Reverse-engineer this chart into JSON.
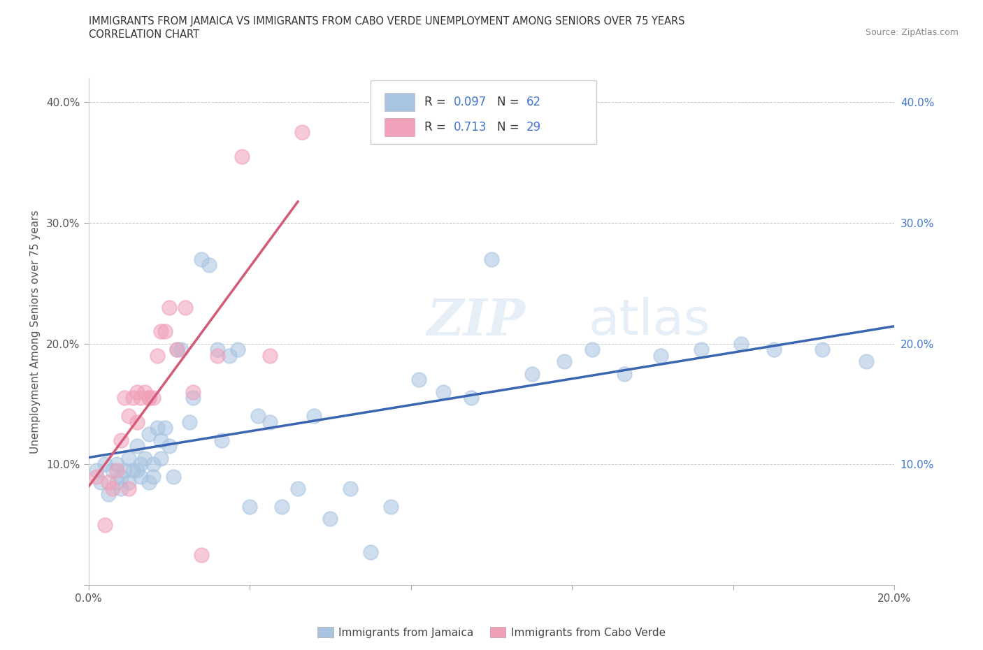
{
  "title_line1": "IMMIGRANTS FROM JAMAICA VS IMMIGRANTS FROM CABO VERDE UNEMPLOYMENT AMONG SENIORS OVER 75 YEARS",
  "title_line2": "CORRELATION CHART",
  "source": "Source: ZipAtlas.com",
  "ylabel_label": "Unemployment Among Seniors over 75 years",
  "xlim": [
    0.0,
    0.2
  ],
  "ylim": [
    0.0,
    0.42
  ],
  "xtick_positions": [
    0.0,
    0.04,
    0.08,
    0.12,
    0.16,
    0.2
  ],
  "ytick_positions": [
    0.0,
    0.1,
    0.2,
    0.3,
    0.4
  ],
  "jamaica_color": "#a8c4e0",
  "cabo_verde_color": "#f0a0b8",
  "jamaica_line_color": "#3a65b0",
  "cabo_verde_line_color": "#d45a78",
  "legend_R_jamaica": "0.097",
  "legend_N_jamaica": "62",
  "legend_R_cabo": "0.713",
  "legend_N_cabo": "29",
  "watermark_zip": "ZIP",
  "watermark_atlas": "atlas",
  "jamaica_scatter_x": [
    0.002,
    0.003,
    0.004,
    0.005,
    0.006,
    0.007,
    0.007,
    0.008,
    0.008,
    0.009,
    0.01,
    0.01,
    0.011,
    0.012,
    0.012,
    0.013,
    0.013,
    0.014,
    0.015,
    0.015,
    0.016,
    0.016,
    0.017,
    0.018,
    0.018,
    0.019,
    0.02,
    0.021,
    0.022,
    0.023,
    0.025,
    0.026,
    0.028,
    0.03,
    0.032,
    0.033,
    0.035,
    0.037,
    0.04,
    0.042,
    0.045,
    0.048,
    0.052,
    0.056,
    0.06,
    0.065,
    0.07,
    0.075,
    0.082,
    0.088,
    0.095,
    0.1,
    0.11,
    0.118,
    0.125,
    0.133,
    0.142,
    0.152,
    0.162,
    0.17,
    0.182,
    0.193
  ],
  "jamaica_scatter_y": [
    0.095,
    0.085,
    0.1,
    0.075,
    0.095,
    0.085,
    0.1,
    0.09,
    0.08,
    0.095,
    0.105,
    0.085,
    0.095,
    0.115,
    0.095,
    0.1,
    0.09,
    0.105,
    0.085,
    0.125,
    0.1,
    0.09,
    0.13,
    0.12,
    0.105,
    0.13,
    0.115,
    0.09,
    0.195,
    0.195,
    0.135,
    0.155,
    0.27,
    0.265,
    0.195,
    0.12,
    0.19,
    0.195,
    0.065,
    0.14,
    0.135,
    0.065,
    0.08,
    0.14,
    0.055,
    0.08,
    0.027,
    0.065,
    0.17,
    0.16,
    0.155,
    0.27,
    0.175,
    0.185,
    0.195,
    0.175,
    0.19,
    0.195,
    0.2,
    0.195,
    0.195,
    0.185
  ],
  "cabo_scatter_x": [
    0.002,
    0.004,
    0.005,
    0.006,
    0.007,
    0.008,
    0.009,
    0.01,
    0.01,
    0.011,
    0.012,
    0.012,
    0.013,
    0.014,
    0.015,
    0.015,
    0.016,
    0.017,
    0.018,
    0.019,
    0.02,
    0.022,
    0.024,
    0.026,
    0.028,
    0.032,
    0.038,
    0.045,
    0.053
  ],
  "cabo_scatter_y": [
    0.09,
    0.05,
    0.085,
    0.08,
    0.095,
    0.12,
    0.155,
    0.14,
    0.08,
    0.155,
    0.16,
    0.135,
    0.155,
    0.16,
    0.155,
    0.155,
    0.155,
    0.19,
    0.21,
    0.21,
    0.23,
    0.195,
    0.23,
    0.16,
    0.025,
    0.19,
    0.355,
    0.19,
    0.375
  ],
  "cabo_line_x_start": 0.0,
  "cabo_line_x_end": 0.052,
  "jamaica_line_x_start": 0.0,
  "jamaica_line_x_end": 0.2
}
